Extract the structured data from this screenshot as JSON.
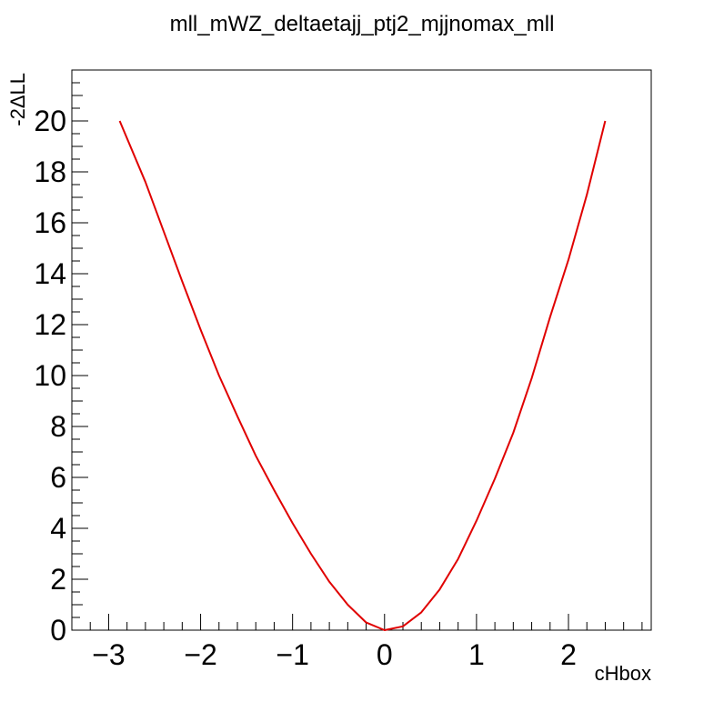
{
  "chart_data": {
    "type": "line",
    "title": "mll_mWZ_deltaetajj_ptj2_mjjnomax_mll",
    "xlabel": "cHbox",
    "ylabel": "-2ΔLL",
    "xlim": [
      -3.4,
      2.9
    ],
    "ylim": [
      0,
      22
    ],
    "x_ticks": [
      -3,
      -2,
      -1,
      0,
      1,
      2
    ],
    "x_tick_labels": [
      "−3",
      "−2",
      "−1",
      "0",
      "1",
      "2"
    ],
    "y_ticks": [
      0,
      2,
      4,
      6,
      8,
      10,
      12,
      14,
      16,
      18,
      20
    ],
    "y_tick_labels": [
      "0",
      "2",
      "4",
      "6",
      "8",
      "10",
      "12",
      "14",
      "16",
      "18",
      "20"
    ],
    "grid": false,
    "legend": "none",
    "series": [
      {
        "color": "#e00000",
        "x": [
          -2.88,
          -2.6,
          -2.4,
          -2.2,
          -2.0,
          -1.8,
          -1.6,
          -1.4,
          -1.2,
          -1.0,
          -0.8,
          -0.6,
          -0.4,
          -0.2,
          0.0,
          0.2,
          0.4,
          0.6,
          0.8,
          1.0,
          1.2,
          1.4,
          1.6,
          1.8,
          2.0,
          2.2,
          2.4
        ],
        "y": [
          20.0,
          17.6,
          15.65,
          13.7,
          11.8,
          10.0,
          8.4,
          6.85,
          5.5,
          4.2,
          3.0,
          1.9,
          1.0,
          0.3,
          0.0,
          0.15,
          0.7,
          1.6,
          2.8,
          4.3,
          5.95,
          7.75,
          9.9,
          12.3,
          14.55,
          17.1,
          20.0
        ]
      }
    ]
  }
}
